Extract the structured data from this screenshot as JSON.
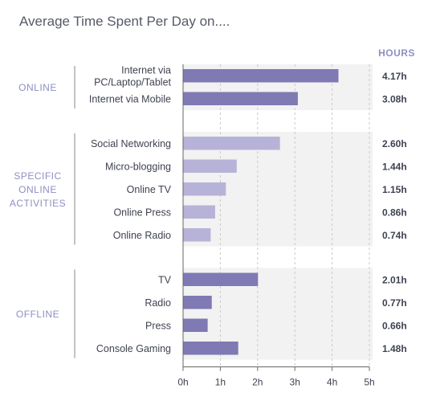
{
  "chart_data": {
    "type": "bar",
    "orientation": "horizontal",
    "title": "Average Time Spent Per Day on....",
    "value_header": "HOURS",
    "xlim": [
      0,
      5
    ],
    "ticks": [
      "0h",
      "1h",
      "2h",
      "3h",
      "4h",
      "5h"
    ],
    "grid": true,
    "groups": [
      {
        "label": [
          "ONLINE"
        ],
        "color": "#7f79b4",
        "items": [
          {
            "label": [
              "Internet via",
              "PC/Laptop/Tablet"
            ],
            "value": 4.17,
            "display": "4.17h"
          },
          {
            "label": [
              "Internet via Mobile"
            ],
            "value": 3.08,
            "display": "3.08h"
          }
        ]
      },
      {
        "label": [
          "SPECIFIC",
          "ONLINE",
          "ACTIVITIES"
        ],
        "color": "#b7b3d8",
        "items": [
          {
            "label": [
              "Social Networking"
            ],
            "value": 2.6,
            "display": "2.60h"
          },
          {
            "label": [
              "Micro-blogging"
            ],
            "value": 1.44,
            "display": "1.44h"
          },
          {
            "label": [
              "Online TV"
            ],
            "value": 1.15,
            "display": "1.15h"
          },
          {
            "label": [
              "Online Press"
            ],
            "value": 0.86,
            "display": "0.86h"
          },
          {
            "label": [
              "Online Radio"
            ],
            "value": 0.74,
            "display": "0.74h"
          }
        ]
      },
      {
        "label": [
          "OFFLINE"
        ],
        "color": "#7f79b4",
        "items": [
          {
            "label": [
              "TV"
            ],
            "value": 2.01,
            "display": "2.01h"
          },
          {
            "label": [
              "Radio"
            ],
            "value": 0.77,
            "display": "0.77h"
          },
          {
            "label": [
              "Press"
            ],
            "value": 0.66,
            "display": "0.66h"
          },
          {
            "label": [
              "Console Gaming"
            ],
            "value": 1.48,
            "display": "1.48h"
          }
        ]
      }
    ]
  }
}
